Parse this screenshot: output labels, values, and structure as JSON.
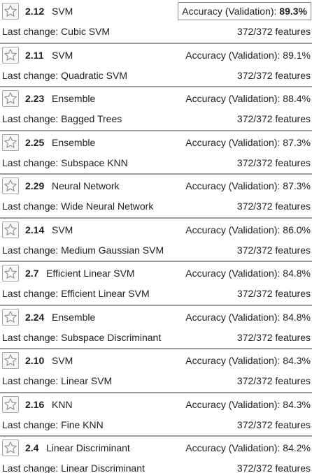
{
  "star_icon": "star-icon",
  "models": [
    {
      "id": "2.12",
      "type": "SVM",
      "metric_label": "Accuracy (Validation):",
      "metric_value": "89.3%",
      "last_change_label": "Last change:",
      "last_change": "Cubic SVM",
      "features": "372/372 features",
      "selected": true
    },
    {
      "id": "2.11",
      "type": "SVM",
      "metric_label": "Accuracy (Validation):",
      "metric_value": "89.1%",
      "last_change_label": "Last change:",
      "last_change": "Quadratic SVM",
      "features": "372/372 features",
      "selected": false
    },
    {
      "id": "2.23",
      "type": "Ensemble",
      "metric_label": "Accuracy (Validation):",
      "metric_value": "88.4%",
      "last_change_label": "Last change:",
      "last_change": "Bagged Trees",
      "features": "372/372 features",
      "selected": false
    },
    {
      "id": "2.25",
      "type": "Ensemble",
      "metric_label": "Accuracy (Validation):",
      "metric_value": "87.3%",
      "last_change_label": "Last change:",
      "last_change": "Subspace KNN",
      "features": "372/372 features",
      "selected": false
    },
    {
      "id": "2.29",
      "type": "Neural Network",
      "metric_label": "Accuracy (Validation):",
      "metric_value": "87.3%",
      "last_change_label": "Last change:",
      "last_change": "Wide Neural Network",
      "features": "372/372 features",
      "selected": false
    },
    {
      "id": "2.14",
      "type": "SVM",
      "metric_label": "Accuracy (Validation):",
      "metric_value": "86.0%",
      "last_change_label": "Last change:",
      "last_change": "Medium Gaussian SVM",
      "features": "372/372 features",
      "selected": false
    },
    {
      "id": "2.7",
      "type": "Efficient Linear SVM",
      "metric_label": "Accuracy (Validation):",
      "metric_value": "84.8%",
      "last_change_label": "Last change:",
      "last_change": "Efficient Linear SVM",
      "features": "372/372 features",
      "selected": false
    },
    {
      "id": "2.24",
      "type": "Ensemble",
      "metric_label": "Accuracy (Validation):",
      "metric_value": "84.8%",
      "last_change_label": "Last change:",
      "last_change": "Subspace Discriminant",
      "features": "372/372 features",
      "selected": false
    },
    {
      "id": "2.10",
      "type": "SVM",
      "metric_label": "Accuracy (Validation):",
      "metric_value": "84.3%",
      "last_change_label": "Last change:",
      "last_change": "Linear SVM",
      "features": "372/372 features",
      "selected": false
    },
    {
      "id": "2.16",
      "type": "KNN",
      "metric_label": "Accuracy (Validation):",
      "metric_value": "84.3%",
      "last_change_label": "Last change:",
      "last_change": "Fine KNN",
      "features": "372/372 features",
      "selected": false
    },
    {
      "id": "2.4",
      "type": "Linear Discriminant",
      "metric_label": "Accuracy (Validation):",
      "metric_value": "84.2%",
      "last_change_label": "Last change:",
      "last_change": "Linear Discriminant",
      "features": "372/372 features",
      "selected": false
    }
  ]
}
